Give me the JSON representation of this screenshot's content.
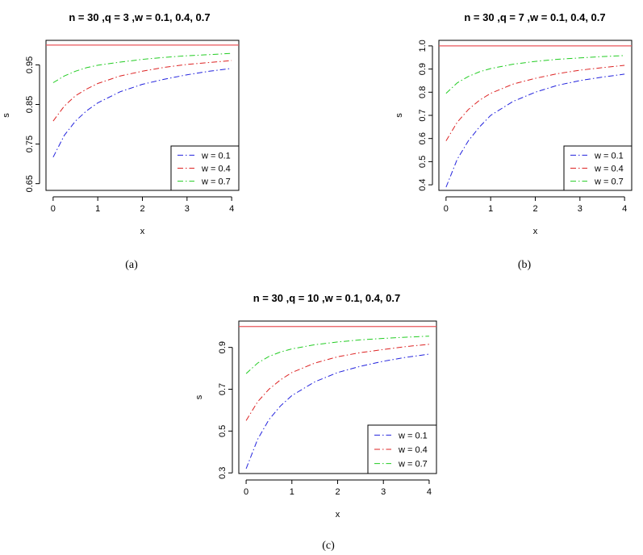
{
  "chart_data": [
    {
      "type": "line",
      "panel_label": "(a)",
      "title": "n = 30 ,q = 3 ,w = 0.1, 0.4, 0.7",
      "xlabel": "x",
      "ylabel": "s",
      "xlim": [
        -0.16,
        4.16
      ],
      "ylim": [
        0.633,
        1.012
      ],
      "xticks": [
        0,
        1,
        2,
        3,
        4
      ],
      "yticks": [
        0.65,
        0.75,
        0.85,
        0.95
      ],
      "ytick_labels": [
        "0.65",
        "0.75",
        "0.85",
        "0.95"
      ],
      "reference_line": {
        "y": 1.0,
        "color": "#e8555a"
      },
      "legend_position": "bottom-right",
      "x": [
        0,
        0.25,
        0.5,
        0.75,
        1,
        1.5,
        2,
        2.5,
        3,
        3.5,
        4
      ],
      "series": [
        {
          "name": "w = 0.1",
          "color": "#2222dd",
          "values": [
            0.717,
            0.772,
            0.808,
            0.834,
            0.854,
            0.882,
            0.901,
            0.914,
            0.925,
            0.934,
            0.941
          ]
        },
        {
          "name": "w = 0.4",
          "color": "#dd2222",
          "values": [
            0.808,
            0.846,
            0.872,
            0.889,
            0.903,
            0.922,
            0.934,
            0.944,
            0.951,
            0.956,
            0.961
          ]
        },
        {
          "name": "w = 0.7",
          "color": "#22cc22",
          "values": [
            0.905,
            0.922,
            0.934,
            0.943,
            0.949,
            0.957,
            0.964,
            0.969,
            0.973,
            0.976,
            0.979
          ]
        }
      ]
    },
    {
      "type": "line",
      "panel_label": "(b)",
      "title": "n = 30 ,q = 7 ,w = 0.1, 0.4, 0.7",
      "xlabel": "x",
      "ylabel": "s",
      "xlim": [
        -0.16,
        4.16
      ],
      "ylim": [
        0.376,
        1.024
      ],
      "xticks": [
        0,
        1,
        2,
        3,
        4
      ],
      "yticks": [
        0.4,
        0.5,
        0.6,
        0.7,
        0.8,
        0.9,
        1.0
      ],
      "ytick_labels": [
        "0.4",
        "0.5",
        "0.6",
        "0.7",
        "0.8",
        "0.9",
        "1.0"
      ],
      "reference_line": {
        "y": 1.0,
        "color": "#e8555a"
      },
      "legend_position": "bottom-right",
      "x": [
        0,
        0.25,
        0.5,
        0.75,
        1,
        1.5,
        2,
        2.5,
        3,
        3.5,
        4
      ],
      "series": [
        {
          "name": "w = 0.1",
          "color": "#2222dd",
          "values": [
            0.39,
            0.51,
            0.59,
            0.65,
            0.7,
            0.76,
            0.8,
            0.83,
            0.85,
            0.865,
            0.878
          ]
        },
        {
          "name": "w = 0.4",
          "color": "#dd2222",
          "values": [
            0.59,
            0.67,
            0.725,
            0.765,
            0.795,
            0.835,
            0.86,
            0.88,
            0.895,
            0.906,
            0.916
          ]
        },
        {
          "name": "w = 0.7",
          "color": "#22cc22",
          "values": [
            0.795,
            0.84,
            0.868,
            0.888,
            0.902,
            0.921,
            0.933,
            0.942,
            0.948,
            0.954,
            0.958
          ]
        }
      ]
    },
    {
      "type": "line",
      "panel_label": "(c)",
      "title": "n = 30 ,q = 10 ,w = 0.1, 0.4, 0.7",
      "xlabel": "x",
      "ylabel": "s",
      "xlim": [
        -0.16,
        4.16
      ],
      "ylim": [
        0.297,
        1.026
      ],
      "xticks": [
        0,
        1,
        2,
        3,
        4
      ],
      "yticks": [
        0.3,
        0.5,
        0.7,
        0.9
      ],
      "ytick_labels": [
        "0.3",
        "0.5",
        "0.7",
        "0.9"
      ],
      "reference_line": {
        "y": 1.0,
        "color": "#e8555a"
      },
      "legend_position": "bottom-right",
      "x": [
        0,
        0.25,
        0.5,
        0.75,
        1,
        1.5,
        2,
        2.5,
        3,
        3.5,
        4
      ],
      "series": [
        {
          "name": "w = 0.1",
          "color": "#2222dd",
          "values": [
            0.32,
            0.46,
            0.555,
            0.62,
            0.67,
            0.735,
            0.78,
            0.81,
            0.834,
            0.853,
            0.868
          ]
        },
        {
          "name": "w = 0.4",
          "color": "#dd2222",
          "values": [
            0.55,
            0.64,
            0.7,
            0.745,
            0.78,
            0.825,
            0.855,
            0.875,
            0.89,
            0.904,
            0.915
          ]
        },
        {
          "name": "w = 0.7",
          "color": "#22cc22",
          "values": [
            0.775,
            0.825,
            0.857,
            0.878,
            0.893,
            0.913,
            0.926,
            0.936,
            0.943,
            0.949,
            0.954
          ]
        }
      ]
    }
  ]
}
